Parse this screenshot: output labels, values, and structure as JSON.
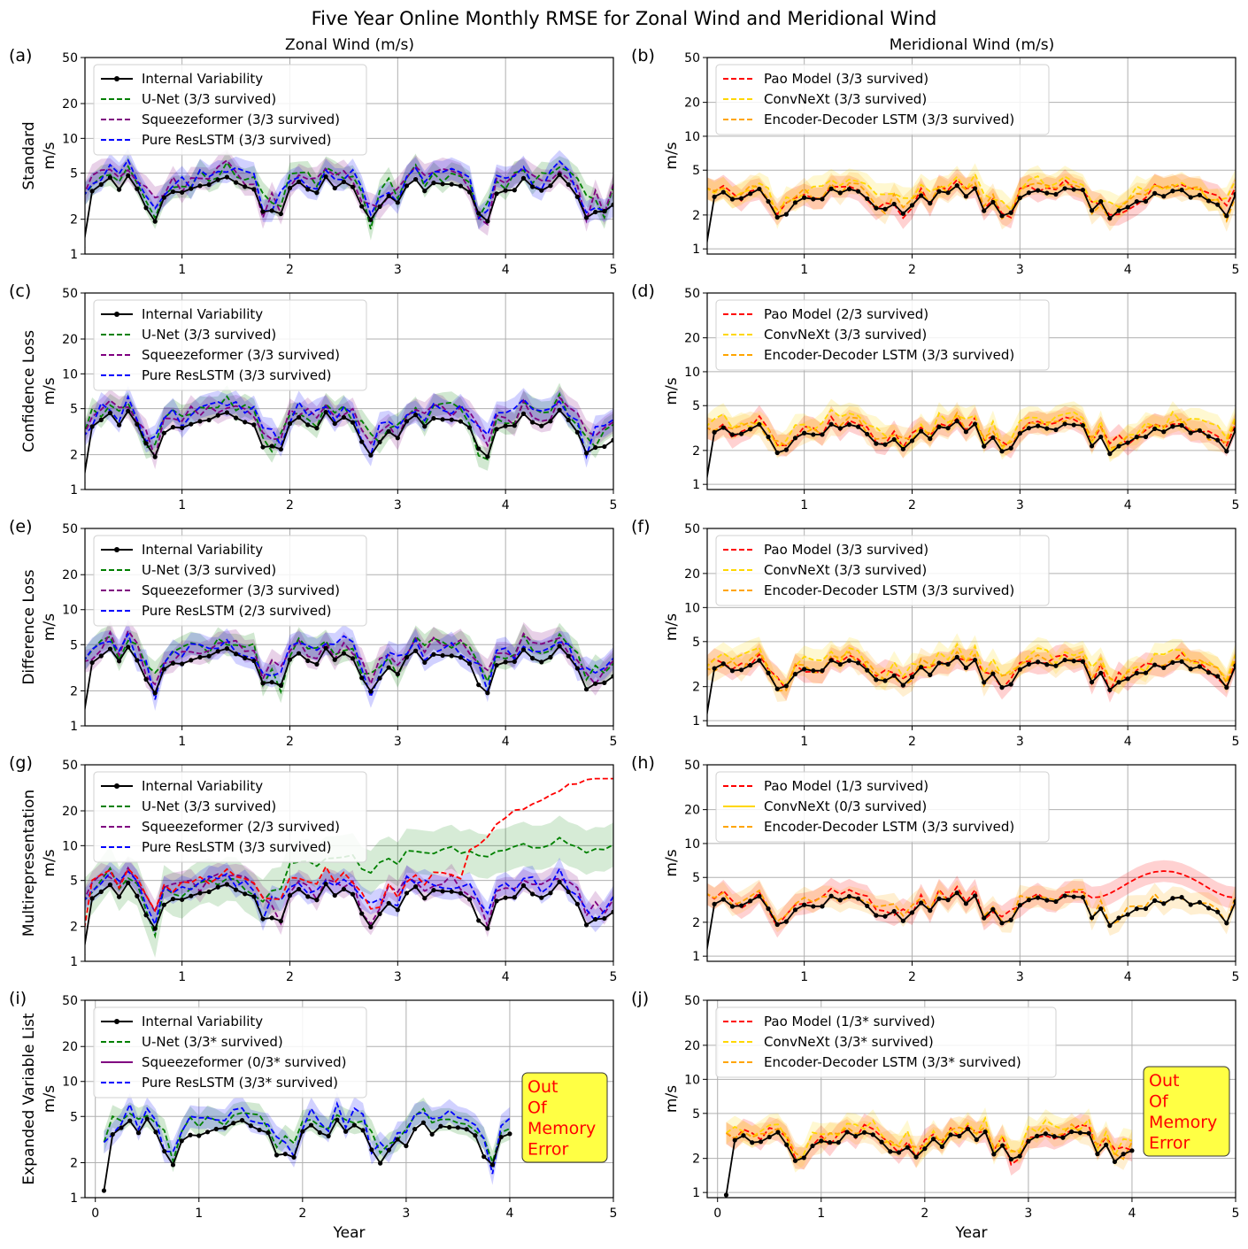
{
  "title": "Five Year Online Monthly RMSE for Zonal Wind and Meridional Wind",
  "column_titles": [
    "Zonal Wind (m/s)",
    "Meridional Wind (m/s)"
  ],
  "ylabel_unit": "m/s",
  "xlabel": "Year",
  "annotation_text": [
    "Out",
    "Of",
    "Memory",
    "Error"
  ],
  "colors": {
    "internal": "#000000",
    "unet": "#008000",
    "squeeze": "#800080",
    "reslstm": "#0000ff",
    "pao": "#ff0000",
    "convnext": "#ffd700",
    "edlstm": "#ffa500",
    "ann_bg": "#ffff44",
    "ann_text": "#ff0000"
  },
  "chart_data": [
    {
      "panel": "(a)",
      "row_label": "Standard",
      "type": "line",
      "yscale": "log",
      "ylim": [
        1,
        50
      ],
      "xlim": [
        0.1,
        5
      ],
      "xticks": [
        1,
        2,
        3,
        4,
        5
      ],
      "yticks": [
        1,
        2,
        5,
        10,
        20,
        50
      ],
      "legend": [
        {
          "label": "Internal Variability",
          "key": "internal",
          "style": "solid-marker"
        },
        {
          "label": "U-Net (3/3 survived)",
          "key": "unet",
          "style": "dashed"
        },
        {
          "label": "Squeezeformer (3/3 survived)",
          "key": "squeeze",
          "style": "dashed"
        },
        {
          "label": "Pure ResLSTM (3/3 survived)",
          "key": "reslstm",
          "style": "dashed"
        }
      ]
    },
    {
      "panel": "(b)",
      "row_label": "",
      "type": "line",
      "yscale": "log",
      "ylim": [
        0.9,
        50
      ],
      "xlim": [
        0.1,
        5
      ],
      "xticks": [
        1,
        2,
        3,
        4,
        5
      ],
      "yticks": [
        1,
        2,
        5,
        10,
        20,
        50
      ],
      "legend": [
        {
          "label": "Pao Model (3/3 survived)",
          "key": "pao",
          "style": "dashed"
        },
        {
          "label": "ConvNeXt (3/3 survived)",
          "key": "convnext",
          "style": "dashed"
        },
        {
          "label": "Encoder-Decoder LSTM (3/3 survived)",
          "key": "edlstm",
          "style": "dashed"
        }
      ]
    },
    {
      "panel": "(c)",
      "row_label": "Confidence Loss",
      "type": "line",
      "yscale": "log",
      "ylim": [
        1,
        50
      ],
      "xlim": [
        0.1,
        5
      ],
      "xticks": [
        1,
        2,
        3,
        4,
        5
      ],
      "yticks": [
        1,
        2,
        5,
        10,
        20,
        50
      ],
      "legend": [
        {
          "label": "Internal Variability",
          "key": "internal",
          "style": "solid-marker"
        },
        {
          "label": "U-Net (3/3 survived)",
          "key": "unet",
          "style": "dashed"
        },
        {
          "label": "Squeezeformer (3/3 survived)",
          "key": "squeeze",
          "style": "dashed"
        },
        {
          "label": "Pure ResLSTM (3/3 survived)",
          "key": "reslstm",
          "style": "dashed"
        }
      ]
    },
    {
      "panel": "(d)",
      "row_label": "",
      "type": "line",
      "yscale": "log",
      "ylim": [
        0.9,
        50
      ],
      "xlim": [
        0.1,
        5
      ],
      "xticks": [
        1,
        2,
        3,
        4,
        5
      ],
      "yticks": [
        1,
        2,
        5,
        10,
        20,
        50
      ],
      "legend": [
        {
          "label": "Pao Model (2/3 survived)",
          "key": "pao",
          "style": "dashed"
        },
        {
          "label": "ConvNeXt (3/3 survived)",
          "key": "convnext",
          "style": "dashed"
        },
        {
          "label": "Encoder-Decoder LSTM (3/3 survived)",
          "key": "edlstm",
          "style": "dashed"
        }
      ]
    },
    {
      "panel": "(e)",
      "row_label": "Difference Loss",
      "type": "line",
      "yscale": "log",
      "ylim": [
        1,
        50
      ],
      "xlim": [
        0.1,
        5
      ],
      "xticks": [
        1,
        2,
        3,
        4,
        5
      ],
      "yticks": [
        1,
        2,
        5,
        10,
        20,
        50
      ],
      "legend": [
        {
          "label": "Internal Variability",
          "key": "internal",
          "style": "solid-marker"
        },
        {
          "label": "U-Net (3/3 survived)",
          "key": "unet",
          "style": "dashed"
        },
        {
          "label": "Squeezeformer (3/3 survived)",
          "key": "squeeze",
          "style": "dashed"
        },
        {
          "label": "Pure ResLSTM (2/3 survived)",
          "key": "reslstm",
          "style": "dashed"
        }
      ]
    },
    {
      "panel": "(f)",
      "row_label": "",
      "type": "line",
      "yscale": "log",
      "ylim": [
        0.9,
        50
      ],
      "xlim": [
        0.1,
        5
      ],
      "xticks": [
        1,
        2,
        3,
        4,
        5
      ],
      "yticks": [
        1,
        2,
        5,
        10,
        20,
        50
      ],
      "legend": [
        {
          "label": "Pao Model (3/3 survived)",
          "key": "pao",
          "style": "dashed"
        },
        {
          "label": "ConvNeXt (3/3 survived)",
          "key": "convnext",
          "style": "dashed"
        },
        {
          "label": "Encoder-Decoder LSTM (3/3 survived)",
          "key": "edlstm",
          "style": "dashed"
        }
      ]
    },
    {
      "panel": "(g)",
      "row_label": "Multirepresentation",
      "type": "line",
      "yscale": "log",
      "ylim": [
        1,
        50
      ],
      "xlim": [
        0.1,
        5
      ],
      "xticks": [
        1,
        2,
        3,
        4,
        5
      ],
      "yticks": [
        1,
        2,
        5,
        10,
        20,
        50
      ],
      "legend": [
        {
          "label": "Internal Variability",
          "key": "internal",
          "style": "solid-marker"
        },
        {
          "label": "U-Net (3/3 survived)",
          "key": "unet",
          "style": "dashed"
        },
        {
          "label": "Squeezeformer (2/3 survived)",
          "key": "squeeze",
          "style": "dashed"
        },
        {
          "label": "Pure ResLSTM (3/3 survived)",
          "key": "reslstm",
          "style": "dashed"
        }
      ]
    },
    {
      "panel": "(h)",
      "row_label": "",
      "type": "line",
      "yscale": "log",
      "ylim": [
        0.9,
        50
      ],
      "xlim": [
        0.1,
        5
      ],
      "xticks": [
        1,
        2,
        3,
        4,
        5
      ],
      "yticks": [
        1,
        2,
        5,
        10,
        20,
        50
      ],
      "legend": [
        {
          "label": "Pao Model (1/3 survived)",
          "key": "pao",
          "style": "dashed"
        },
        {
          "label": "ConvNeXt (0/3 survived)",
          "key": "convnext",
          "style": "solid"
        },
        {
          "label": "Encoder-Decoder LSTM (3/3 survived)",
          "key": "edlstm",
          "style": "dashed"
        }
      ]
    },
    {
      "panel": "(i)",
      "row_label": "Expanded Variable List",
      "type": "line",
      "yscale": "log",
      "ylim": [
        1,
        50
      ],
      "xlim": [
        -0.1,
        5
      ],
      "xticks": [
        0,
        1,
        2,
        3,
        4,
        5
      ],
      "yticks": [
        1,
        2,
        5,
        10,
        20,
        50
      ],
      "note": "Out Of Memory Error",
      "legend": [
        {
          "label": "Internal Variability",
          "key": "internal",
          "style": "solid-marker"
        },
        {
          "label": "U-Net (3/3* survived)",
          "key": "unet",
          "style": "dashed"
        },
        {
          "label": "Squeezeformer (0/3* survived)",
          "key": "squeeze",
          "style": "solid"
        },
        {
          "label": "Pure ResLSTM (3/3* survived)",
          "key": "reslstm",
          "style": "dashed"
        }
      ]
    },
    {
      "panel": "(j)",
      "row_label": "",
      "type": "line",
      "yscale": "log",
      "ylim": [
        0.9,
        50
      ],
      "xlim": [
        -0.1,
        5
      ],
      "xticks": [
        0,
        1,
        2,
        3,
        4,
        5
      ],
      "yticks": [
        1,
        2,
        5,
        10,
        20,
        50
      ],
      "note": "Out Of Memory Error",
      "legend": [
        {
          "label": "Pao Model (1/3* survived)",
          "key": "pao",
          "style": "dashed"
        },
        {
          "label": "ConvNeXt (3/3* survived)",
          "key": "convnext",
          "style": "dashed"
        },
        {
          "label": "Encoder-Decoder LSTM (3/3* survived)",
          "key": "edlstm",
          "style": "dashed"
        }
      ]
    }
  ]
}
